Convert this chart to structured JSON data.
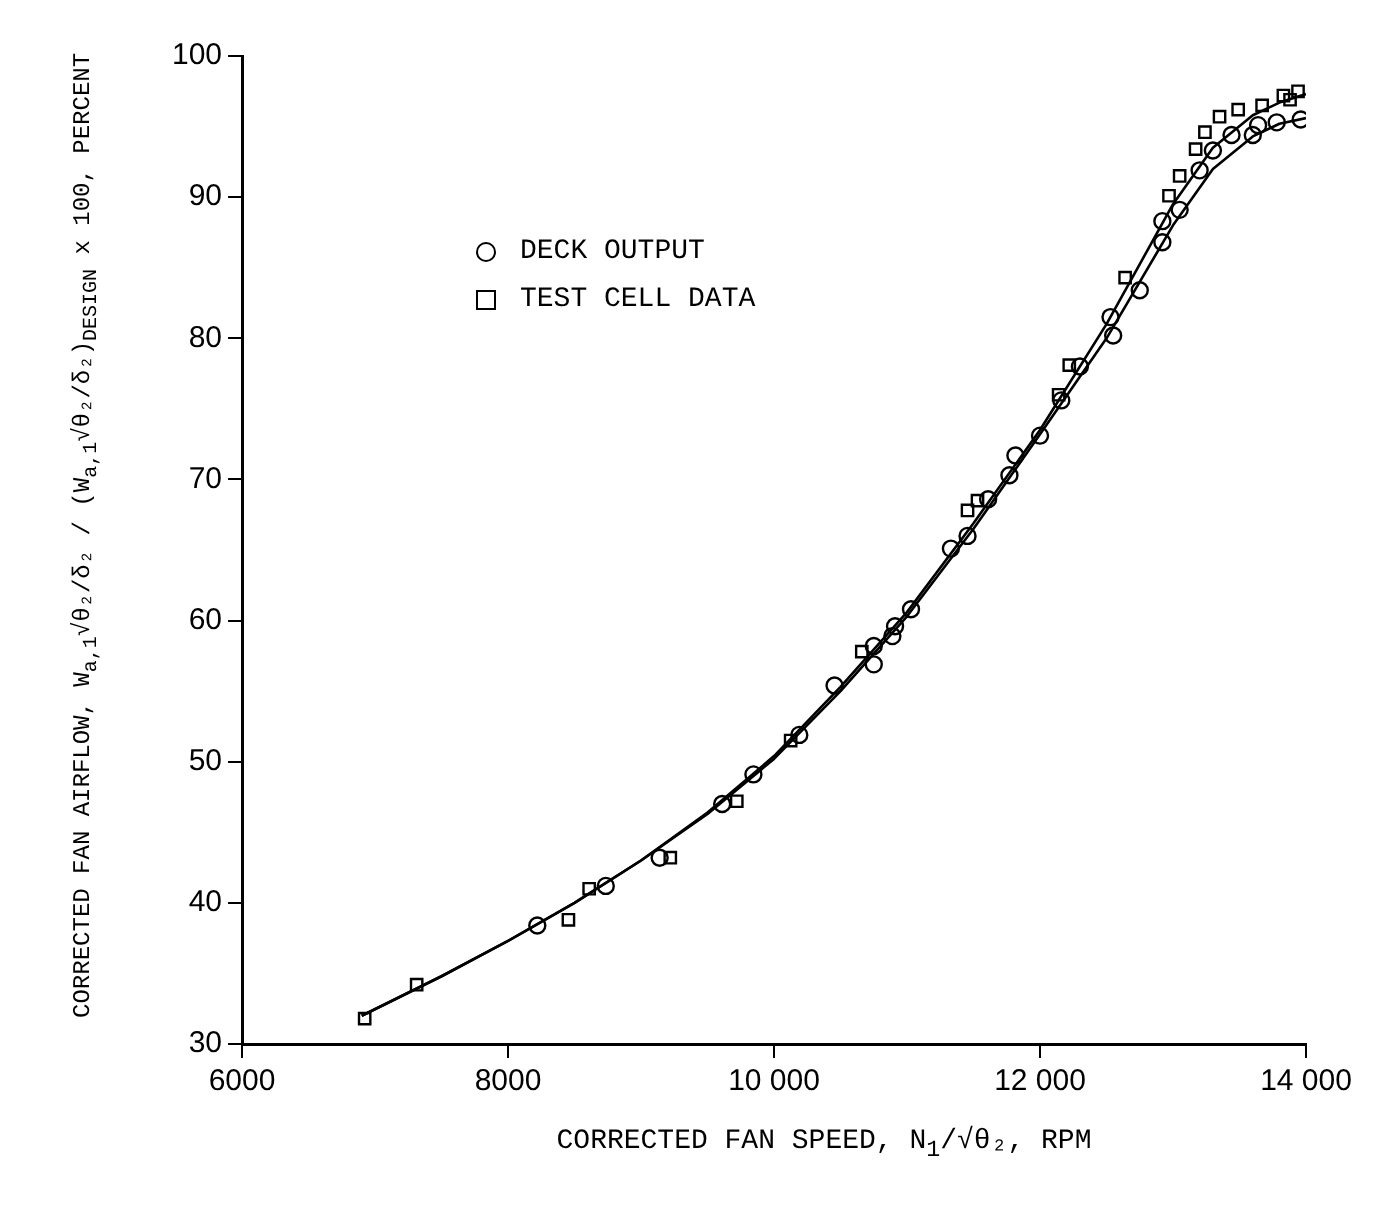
{
  "chart_data": {
    "type": "scatter",
    "xlabel": "CORRECTED FAN SPEED, N$_{1}$/√θ₂, RPM",
    "ylabel": "CORRECTED FAN AIRFLOW, W$_{a,1}$√θ₂/δ₂ / (W$_{a,1}$√θ₂/δ₂)$_{DESIGN}$ x 100, PERCENT",
    "xlim": [
      6000,
      14000
    ],
    "xticks": [
      6000,
      8000,
      {
        "value": 10000,
        "label": "10 000"
      },
      {
        "value": 12000,
        "label": "12 000"
      },
      {
        "value": 14000,
        "label": "14 000"
      }
    ],
    "ylim": [
      30,
      100
    ],
    "yticks": [
      30,
      40,
      50,
      60,
      70,
      80,
      90,
      100
    ],
    "grid": false,
    "legend": "top left",
    "series": [
      {
        "name": "DECK OUTPUT",
        "type": "scatter",
        "marker": "circle",
        "color": "#000000",
        "x": [
          8220,
          8735,
          9140,
          9610,
          9845,
          10190,
          10455,
          10750,
          10750,
          10910,
          10890,
          11030,
          11330,
          11455,
          11610,
          11770,
          11815,
          12000,
          12160,
          12300,
          12550,
          12530,
          12750,
          12920,
          12920,
          13050,
          13200,
          13300,
          13440,
          13600,
          13640,
          13780,
          13960
        ],
        "values": [
          38.4,
          41.2,
          43.2,
          47,
          49.1,
          51.9,
          55.4,
          58.2,
          56.9,
          59.6,
          58.9,
          60.8,
          65.1,
          66,
          68.6,
          70.3,
          71.7,
          73.1,
          75.6,
          78,
          80.2,
          81.5,
          83.4,
          86.8,
          88.3,
          89.1,
          91.9,
          93.3,
          94.4,
          94.4,
          95.1,
          95.3,
          95.5
        ]
      },
      {
        "name": "TEST CELL DATA",
        "type": "scatter",
        "marker": "square",
        "color": "#000000",
        "x": [
          6922,
          7313,
          8454,
          8610,
          9220,
          9720,
          10125,
          10660,
          11455,
          11530,
          12140,
          12220,
          12640,
          12970,
          13050,
          13170,
          13240,
          13350,
          13490,
          13670,
          13830,
          13880,
          13940
        ],
        "values": [
          31.8,
          34.2,
          38.8,
          41,
          43.2,
          47.2,
          51.5,
          57.8,
          67.8,
          68.5,
          76,
          78.1,
          84.3,
          90.1,
          91.5,
          93.4,
          94.6,
          95.7,
          96.2,
          96.5,
          97.2,
          96.9,
          97.5
        ]
      },
      {
        "type": "line",
        "marker": "none",
        "color": "#000000",
        "x": [
          6900,
          7500,
          8000,
          8500,
          9000,
          9500,
          10000,
          10500,
          11000,
          11500,
          12000,
          12500,
          13000,
          13300,
          13600,
          13800,
          14000
        ],
        "values": [
          32,
          34.8,
          37.3,
          40,
          43,
          46.3,
          50.2,
          55,
          60.3,
          66.5,
          73.2,
          80,
          88,
          92,
          94.3,
          95.2,
          95.6
        ]
      },
      {
        "type": "line",
        "marker": "none",
        "color": "#000000",
        "x": [
          6900,
          7500,
          8000,
          8500,
          9000,
          9500,
          10000,
          10500,
          11000,
          11500,
          12000,
          12500,
          13000,
          13300,
          13600,
          13800,
          14000
        ],
        "values": [
          32,
          34.8,
          37.3,
          40,
          43,
          46.4,
          50.4,
          55.3,
          60.6,
          66.9,
          73.5,
          81,
          89.5,
          93.5,
          95.8,
          96.7,
          97.3
        ]
      }
    ]
  }
}
